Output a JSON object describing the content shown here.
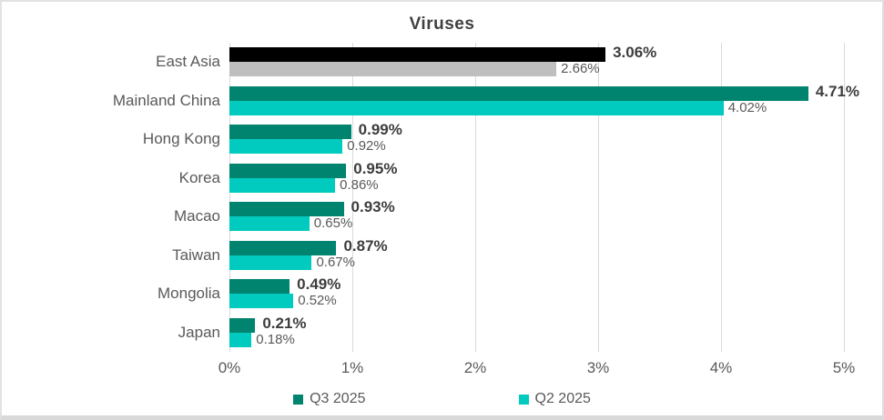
{
  "chart_data": {
    "type": "bar",
    "orientation": "horizontal",
    "title": "Viruses",
    "categories": [
      "East Asia",
      "Mainland China",
      "Hong Kong",
      "Korea",
      "Macao",
      "Taiwan",
      "Mongolia",
      "Japan"
    ],
    "series": [
      {
        "name": "Q3 2025",
        "color": "#00846F",
        "values": [
          3.06,
          4.71,
          0.99,
          0.95,
          0.93,
          0.87,
          0.49,
          0.21
        ],
        "labels": [
          "3.06%",
          "4.71%",
          "0.99%",
          "0.95%",
          "0.93%",
          "0.87%",
          "0.49%",
          "0.21%"
        ]
      },
      {
        "name": "Q2 2025",
        "color": "#00CBBE",
        "values": [
          2.66,
          4.02,
          0.92,
          0.86,
          0.65,
          0.67,
          0.52,
          0.18
        ],
        "labels": [
          "2.66%",
          "4.02%",
          "0.92%",
          "0.86%",
          "0.65%",
          "0.67%",
          "0.52%",
          "0.18%"
        ]
      }
    ],
    "highlight": {
      "category": "East Asia",
      "series_colors": [
        "#000000",
        "#BFBFBF"
      ]
    },
    "x_ticks": [
      "0%",
      "1%",
      "2%",
      "3%",
      "4%",
      "5%"
    ],
    "xlim": [
      0,
      5
    ],
    "grid": true,
    "gridline_color": "#d9d9d9",
    "legend_position": "bottom"
  }
}
